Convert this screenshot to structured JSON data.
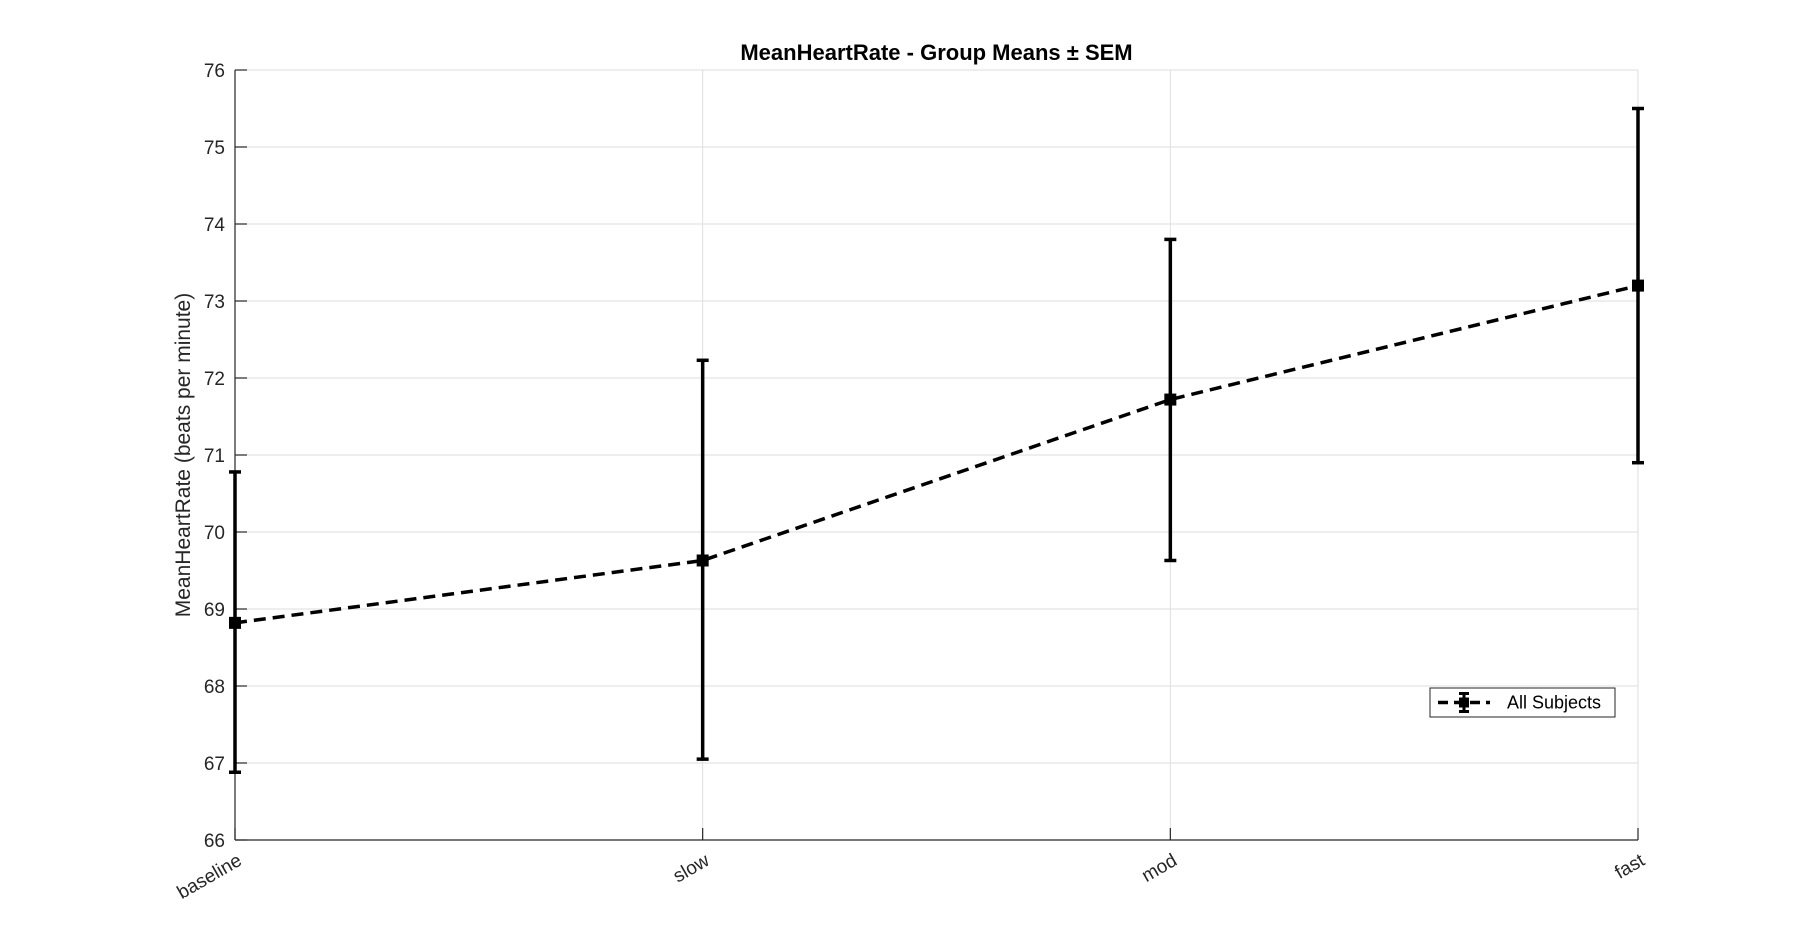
{
  "chart_data": {
    "type": "line",
    "title": "MeanHeartRate - Group Means ± SEM",
    "xlabel": "",
    "ylabel": "MeanHeartRate (beats per minute)",
    "categories": [
      "baseline",
      "slow",
      "mod",
      "fast"
    ],
    "ylim": [
      66,
      76
    ],
    "yticks": [
      66,
      67,
      68,
      69,
      70,
      71,
      72,
      73,
      74,
      75,
      76
    ],
    "grid": true,
    "legend_position": "lower-right",
    "series": [
      {
        "name": "All Subjects",
        "values": [
          68.82,
          69.63,
          71.72,
          73.2
        ],
        "error_lower": [
          66.88,
          67.05,
          69.63,
          70.9
        ],
        "error_upper": [
          70.78,
          72.23,
          73.8,
          75.5
        ],
        "line_style": "dashed",
        "marker": "square",
        "color": "#000000"
      }
    ]
  }
}
